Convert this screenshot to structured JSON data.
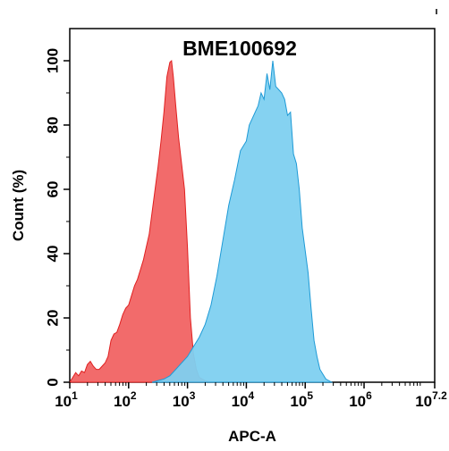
{
  "chart_data": {
    "type": "area",
    "title": "BME100692",
    "xlabel": "APC-A",
    "ylabel": "Count  (%)",
    "xscale": "log",
    "xlim": [
      1,
      7.2
    ],
    "ylim": [
      0,
      110
    ],
    "x_ticks": [
      {
        "base": "10",
        "exp": "1",
        "value": 1
      },
      {
        "base": "10",
        "exp": "2",
        "value": 2
      },
      {
        "base": "10",
        "exp": "3",
        "value": 3
      },
      {
        "base": "10",
        "exp": "4",
        "value": 4
      },
      {
        "base": "10",
        "exp": "5",
        "value": 5
      },
      {
        "base": "10",
        "exp": "6",
        "value": 6
      },
      {
        "base": "10",
        "exp": "7.2",
        "value": 7.2
      }
    ],
    "y_ticks": [
      {
        "label": "0",
        "value": 0
      },
      {
        "label": "20",
        "value": 20
      },
      {
        "label": "40",
        "value": 40
      },
      {
        "label": "60",
        "value": 60
      },
      {
        "label": "80",
        "value": 80
      },
      {
        "label": "100",
        "value": 100
      }
    ],
    "grid": false,
    "legend": "none",
    "series": [
      {
        "color": "#f26b6b",
        "stroke": "#e02020",
        "points": [
          [
            1.0,
            0
          ],
          [
            1.05,
            1.5
          ],
          [
            1.1,
            3
          ],
          [
            1.15,
            2
          ],
          [
            1.2,
            3.5
          ],
          [
            1.25,
            3
          ],
          [
            1.3,
            5.5
          ],
          [
            1.35,
            6.5
          ],
          [
            1.4,
            5
          ],
          [
            1.45,
            4
          ],
          [
            1.5,
            4
          ],
          [
            1.55,
            5
          ],
          [
            1.6,
            6
          ],
          [
            1.65,
            8
          ],
          [
            1.7,
            13
          ],
          [
            1.75,
            15
          ],
          [
            1.8,
            15.5
          ],
          [
            1.85,
            18
          ],
          [
            1.9,
            21
          ],
          [
            1.95,
            23
          ],
          [
            2.0,
            24
          ],
          [
            2.05,
            27
          ],
          [
            2.1,
            30
          ],
          [
            2.15,
            32
          ],
          [
            2.2,
            35
          ],
          [
            2.25,
            38
          ],
          [
            2.3,
            42
          ],
          [
            2.35,
            46
          ],
          [
            2.4,
            53
          ],
          [
            2.45,
            60
          ],
          [
            2.5,
            67
          ],
          [
            2.55,
            75
          ],
          [
            2.6,
            84
          ],
          [
            2.65,
            95
          ],
          [
            2.7,
            99.5
          ],
          [
            2.73,
            100
          ],
          [
            2.76,
            95
          ],
          [
            2.8,
            86
          ],
          [
            2.85,
            76
          ],
          [
            2.9,
            68
          ],
          [
            2.95,
            60
          ],
          [
            3.0,
            42
          ],
          [
            3.05,
            20
          ],
          [
            3.1,
            9
          ],
          [
            3.15,
            4
          ],
          [
            3.2,
            1.5
          ],
          [
            3.3,
            0.5
          ],
          [
            3.4,
            0
          ]
        ]
      },
      {
        "color": "#7ed0f0",
        "stroke": "#1e9ad6",
        "points": [
          [
            2.4,
            0
          ],
          [
            2.6,
            1
          ],
          [
            2.7,
            2
          ],
          [
            2.8,
            4
          ],
          [
            2.9,
            6
          ],
          [
            3.0,
            8
          ],
          [
            3.1,
            11
          ],
          [
            3.2,
            14
          ],
          [
            3.3,
            18
          ],
          [
            3.4,
            24
          ],
          [
            3.5,
            33
          ],
          [
            3.6,
            44
          ],
          [
            3.7,
            55
          ],
          [
            3.8,
            63
          ],
          [
            3.9,
            72
          ],
          [
            4.0,
            75
          ],
          [
            4.05,
            80
          ],
          [
            4.1,
            82
          ],
          [
            4.15,
            84
          ],
          [
            4.2,
            86
          ],
          [
            4.25,
            90
          ],
          [
            4.3,
            88
          ],
          [
            4.35,
            96
          ],
          [
            4.4,
            91
          ],
          [
            4.45,
            100
          ],
          [
            4.5,
            92
          ],
          [
            4.55,
            91
          ],
          [
            4.6,
            90
          ],
          [
            4.65,
            88
          ],
          [
            4.7,
            83
          ],
          [
            4.75,
            84
          ],
          [
            4.8,
            71
          ],
          [
            4.85,
            68
          ],
          [
            4.9,
            60
          ],
          [
            4.95,
            48
          ],
          [
            5.0,
            41
          ],
          [
            5.05,
            34
          ],
          [
            5.1,
            23
          ],
          [
            5.15,
            13
          ],
          [
            5.2,
            8
          ],
          [
            5.25,
            4
          ],
          [
            5.3,
            2.5
          ],
          [
            5.35,
            1
          ],
          [
            5.45,
            0
          ]
        ]
      }
    ]
  }
}
